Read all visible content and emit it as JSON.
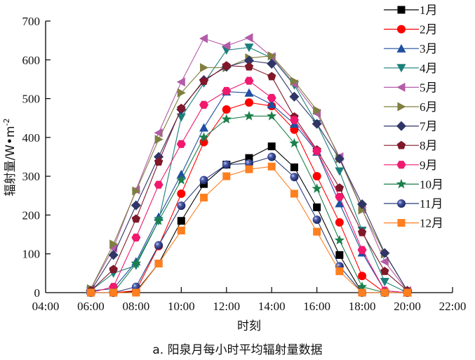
{
  "caption": "a. 阳泉月每小时平均辐射量数据",
  "chart_data": {
    "type": "line",
    "title": "a. 阳泉月每小时平均辐射量数据",
    "xlabel": "时刻",
    "ylabel": "辐射量/W•m⁻²",
    "xlim": [
      4,
      22
    ],
    "ylim": [
      0,
      700
    ],
    "x_ticks": [
      "04:00",
      "06:00",
      "08:00",
      "10:00",
      "12:00",
      "14:00",
      "16:00",
      "18:00",
      "20:00",
      "22:00"
    ],
    "y_ticks": [
      0,
      100,
      200,
      300,
      400,
      500,
      600,
      700
    ],
    "grid": false,
    "legend_position": "upper right",
    "x": [
      6,
      7,
      8,
      9,
      10,
      11,
      12,
      13,
      14,
      15,
      16,
      17,
      18,
      19,
      20
    ],
    "series": [
      {
        "name": "1月",
        "color": "#000000",
        "marker": "square",
        "values": [
          0,
          0,
          3,
          75,
          185,
          280,
          330,
          347,
          377,
          323,
          220,
          97,
          0,
          0,
          0
        ]
      },
      {
        "name": "2月",
        "color": "#ff0000",
        "marker": "circle",
        "values": [
          0,
          0,
          5,
          120,
          255,
          388,
          472,
          490,
          481,
          420,
          300,
          181,
          43,
          0,
          0
        ]
      },
      {
        "name": "3月",
        "color": "#1f4fa0",
        "marker": "triangle-up",
        "values": [
          5,
          10,
          80,
          195,
          305,
          425,
          518,
          515,
          485,
          435,
          363,
          230,
          103,
          5,
          0
        ]
      },
      {
        "name": "4月",
        "color": "#1a7f7a",
        "marker": "triangle-down",
        "values": [
          5,
          50,
          70,
          185,
          452,
          540,
          625,
          632,
          605,
          535,
          435,
          313,
          160,
          28,
          0
        ]
      },
      {
        "name": "5月",
        "color": "#b35ca8",
        "marker": "triangle-left",
        "values": [
          10,
          115,
          265,
          412,
          543,
          655,
          636,
          657,
          608,
          538,
          462,
          350,
          215,
          80,
          5
        ]
      },
      {
        "name": "6月",
        "color": "#7f7f3f",
        "marker": "triangle-right",
        "values": [
          10,
          125,
          262,
          395,
          515,
          580,
          580,
          605,
          610,
          545,
          470,
          345,
          213,
          100,
          5
        ]
      },
      {
        "name": "7月",
        "color": "#2f3566",
        "marker": "diamond",
        "values": [
          5,
          97,
          225,
          350,
          472,
          548,
          582,
          598,
          590,
          505,
          435,
          345,
          228,
          102,
          5
        ]
      },
      {
        "name": "8月",
        "color": "#80182a",
        "marker": "pentagon",
        "values": [
          5,
          60,
          190,
          337,
          475,
          545,
          585,
          582,
          557,
          453,
          368,
          270,
          155,
          55,
          5
        ]
      },
      {
        "name": "9月",
        "color": "#f0196e",
        "marker": "hexagon",
        "values": [
          0,
          15,
          142,
          278,
          383,
          484,
          520,
          546,
          502,
          445,
          365,
          247,
          110,
          5,
          0
        ]
      },
      {
        "name": "10月",
        "color": "#1a7f4a",
        "marker": "star",
        "values": [
          0,
          0,
          75,
          185,
          290,
          400,
          447,
          455,
          455,
          385,
          268,
          135,
          15,
          0,
          0
        ]
      },
      {
        "name": "11月",
        "color": "#283a7a",
        "marker": "sphere",
        "values": [
          0,
          0,
          15,
          122,
          224,
          290,
          330,
          333,
          350,
          298,
          188,
          68,
          0,
          0,
          0
        ]
      },
      {
        "name": "12月",
        "color": "#ff7f1f",
        "marker": "square",
        "values": [
          0,
          0,
          0,
          75,
          160,
          245,
          300,
          318,
          325,
          255,
          157,
          55,
          0,
          0,
          0
        ]
      }
    ]
  }
}
